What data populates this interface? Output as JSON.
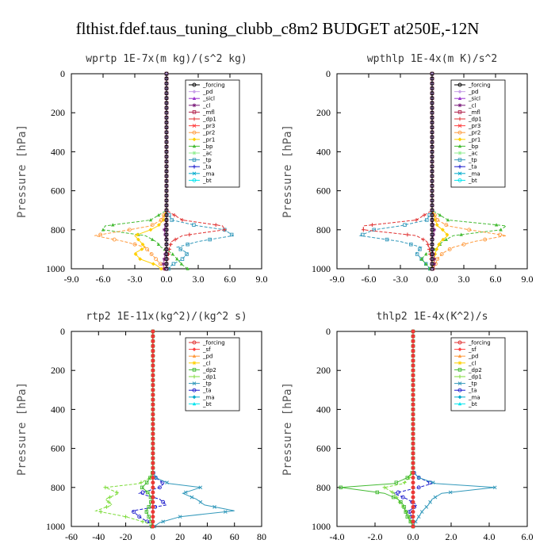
{
  "figure_title": "flthist.fdef.taus_tuning_clubb_c8m2  BUDGET at250E,-12N",
  "chart_data": [
    {
      "type": "line",
      "title": "wprtp  1E-7x(m kg)/(s^2 kg)",
      "ylabel": "Pressure [hPa]",
      "xlim": [
        -9,
        9
      ],
      "ylim": [
        1000,
        0
      ],
      "xticks": [
        "-9.0",
        "-6.0",
        "-3.0",
        "0.0",
        "3.0",
        "6.0",
        "9.0"
      ],
      "yticks": [
        "0",
        "200",
        "400",
        "600",
        "800",
        "1000"
      ],
      "legend_position": "top-right",
      "levels": [
        700,
        750,
        780,
        800,
        830,
        860,
        890,
        920,
        950,
        980,
        1000
      ],
      "series": [
        {
          "name": "_forcing",
          "color": "#000000",
          "values": [
            0,
            0,
            0,
            0,
            0,
            0,
            0,
            0,
            0,
            0,
            0
          ]
        },
        {
          "name": "_pd",
          "color": "#c8a0e8",
          "values": [
            0,
            0,
            0,
            0,
            0,
            0,
            0,
            0,
            0,
            0,
            0
          ]
        },
        {
          "name": "_sicl",
          "color": "#9932cc",
          "values": [
            0,
            0,
            0,
            0,
            0,
            0,
            0,
            0,
            0,
            0,
            0
          ]
        },
        {
          "name": "_cl",
          "color": "#7a1a7a",
          "values": [
            0,
            0,
            -0.1,
            -0.2,
            -0.1,
            0,
            0,
            -0.1,
            -0.2,
            -0.3,
            -0.2
          ]
        },
        {
          "name": "_mfl",
          "color": "#b0204a",
          "values": [
            0,
            0,
            0,
            0,
            0,
            0,
            0,
            0,
            0,
            0,
            0
          ]
        },
        {
          "name": "_dp1",
          "color": "#e03030",
          "values": [
            0,
            1.5,
            5.3,
            5.5,
            1.5,
            0.5,
            0.3,
            0.2,
            0.1,
            0,
            0
          ]
        },
        {
          "name": "_pr3",
          "color": "#ff4040",
          "values": [
            0,
            0,
            0,
            0,
            0,
            0,
            0,
            0,
            0,
            0,
            0
          ]
        },
        {
          "name": "_pr2",
          "color": "#ff9a3c",
          "values": [
            0,
            -0.5,
            -1.5,
            -3.5,
            -6.8,
            -4.0,
            -2.0,
            -1.5,
            -1.0,
            -0.5,
            -0.2
          ]
        },
        {
          "name": "_pr1",
          "color": "#ffd000",
          "values": [
            0,
            -0.3,
            -0.8,
            -1.5,
            -3.0,
            -2.5,
            -2.0,
            -3.0,
            -2.5,
            -1.0,
            -0.5
          ]
        },
        {
          "name": "_bp",
          "color": "#44bb33",
          "values": [
            0,
            -1.5,
            -5.8,
            -6.0,
            -2.0,
            -1.0,
            -0.5,
            0.5,
            1.0,
            1.5,
            2.0
          ]
        },
        {
          "name": "_ac",
          "color": "#90ee90",
          "values": [
            0,
            0,
            0,
            0,
            0,
            0,
            0,
            0,
            0,
            0,
            0
          ]
        },
        {
          "name": "_tp",
          "color": "#3399bb",
          "values": [
            0,
            0.5,
            3.0,
            5.5,
            6.3,
            3.0,
            1.0,
            2.0,
            1.5,
            0.5,
            0.2
          ]
        },
        {
          "name": "_ta",
          "color": "#1a1acc",
          "values": [
            0,
            0,
            0,
            0,
            0,
            0,
            0,
            0,
            0,
            0,
            0
          ]
        },
        {
          "name": "_ma",
          "color": "#00aacc",
          "values": [
            0,
            0,
            0,
            0,
            0,
            0,
            0,
            0,
            0,
            0,
            0
          ]
        },
        {
          "name": "_bt",
          "color": "#00e5ee",
          "values": [
            0,
            0,
            0,
            0,
            0,
            0,
            0,
            0,
            0,
            0,
            0
          ]
        }
      ]
    },
    {
      "type": "line",
      "title": "wpthlp  1E-4x(m K)/s^2",
      "ylabel": "Pressure [hPa]",
      "xlim": [
        -9,
        9
      ],
      "ylim": [
        1000,
        0
      ],
      "xticks": [
        "-9.0",
        "-6.0",
        "-3.0",
        "0.0",
        "3.0",
        "6.0",
        "9.0"
      ],
      "yticks": [
        "0",
        "200",
        "400",
        "600",
        "800",
        "1000"
      ],
      "legend_position": "top-right",
      "levels": [
        700,
        750,
        780,
        800,
        830,
        860,
        890,
        920,
        950,
        980,
        1000
      ],
      "series": [
        {
          "name": "_forcing",
          "color": "#000000",
          "values": [
            0,
            0,
            0,
            0,
            0,
            0,
            0,
            0,
            0,
            0,
            0
          ]
        },
        {
          "name": "_pd",
          "color": "#c8a0e8",
          "values": [
            0,
            0,
            0,
            0,
            0,
            0,
            0,
            0,
            0,
            0,
            0
          ]
        },
        {
          "name": "_sicl",
          "color": "#9932cc",
          "values": [
            0,
            0,
            0,
            0,
            0,
            0,
            0,
            0,
            0,
            0,
            0
          ]
        },
        {
          "name": "_cl",
          "color": "#7a1a7a",
          "values": [
            0,
            0,
            0.1,
            0.2,
            0.1,
            0,
            0,
            0.1,
            0.2,
            0.2,
            0.1
          ]
        },
        {
          "name": "_mfl",
          "color": "#b0204a",
          "values": [
            0,
            0,
            0,
            0,
            0,
            0,
            0,
            0,
            0,
            0,
            0
          ]
        },
        {
          "name": "_dp1",
          "color": "#e03030",
          "values": [
            0,
            -1.5,
            -6.5,
            -6.5,
            -1.5,
            -0.5,
            -0.3,
            -0.2,
            -0.1,
            0,
            0
          ]
        },
        {
          "name": "_pr3",
          "color": "#ff4040",
          "values": [
            0,
            0,
            0,
            0,
            0,
            0,
            0,
            0,
            0,
            0,
            0
          ]
        },
        {
          "name": "_pr2",
          "color": "#ff9a3c",
          "values": [
            0,
            0.5,
            1.5,
            3.5,
            7.0,
            4.0,
            2.0,
            1.0,
            0.5,
            0.3,
            0.1
          ]
        },
        {
          "name": "_pr1",
          "color": "#ffd000",
          "values": [
            0,
            0.3,
            0.5,
            1.0,
            1.5,
            0.8,
            0.5,
            0.3,
            0.2,
            0.1,
            0
          ]
        },
        {
          "name": "_bp",
          "color": "#44bb33",
          "values": [
            0,
            1.5,
            7.0,
            6.5,
            2.0,
            1.0,
            0.5,
            -0.5,
            -1.0,
            -0.5,
            -0.2
          ]
        },
        {
          "name": "_ac",
          "color": "#90ee90",
          "values": [
            0,
            0,
            0,
            0,
            0,
            0,
            0,
            0,
            0,
            0,
            0
          ]
        },
        {
          "name": "_tp",
          "color": "#3399bb",
          "values": [
            0,
            -0.5,
            -3.0,
            -5.5,
            -6.8,
            -3.0,
            -1.0,
            -1.5,
            -1.0,
            -0.5,
            -0.2
          ]
        },
        {
          "name": "_ta",
          "color": "#1a1acc",
          "values": [
            0,
            0,
            0,
            0,
            0,
            0,
            0,
            0,
            0,
            0,
            0
          ]
        },
        {
          "name": "_ma",
          "color": "#00aacc",
          "values": [
            0,
            0,
            0,
            0,
            0,
            0,
            0,
            0,
            0,
            0,
            0
          ]
        },
        {
          "name": "_bt",
          "color": "#00e5ee",
          "values": [
            0,
            0,
            0,
            0,
            0,
            0,
            0,
            0,
            0,
            0,
            0
          ]
        }
      ]
    },
    {
      "type": "line",
      "title": "rtp2  1E-11x(kg^2)/(kg^2 s)",
      "ylabel": "Pressure [hPa]",
      "xlim": [
        -60,
        80
      ],
      "ylim": [
        1000,
        0
      ],
      "xticks": [
        "-60",
        "-40",
        "-20",
        "0",
        "20",
        "40",
        "60",
        "80"
      ],
      "yticks": [
        "0",
        "200",
        "400",
        "600",
        "800",
        "1000"
      ],
      "legend_position": "top-right",
      "levels": [
        720,
        750,
        780,
        800,
        830,
        860,
        890,
        920,
        950,
        980,
        1000
      ],
      "series": [
        {
          "name": "_forcing",
          "color": "#e03030",
          "values": [
            0,
            0,
            0,
            0,
            0,
            0,
            0,
            0,
            0,
            0,
            0
          ]
        },
        {
          "name": "_sf",
          "color": "#ff4040",
          "values": [
            0,
            0,
            0,
            0,
            0,
            0,
            0,
            0,
            0,
            0,
            0
          ]
        },
        {
          "name": "_pd",
          "color": "#ff9a3c",
          "values": [
            0,
            0,
            0,
            0,
            0,
            0,
            0,
            0,
            0,
            0,
            0
          ]
        },
        {
          "name": "_cl",
          "color": "#ffd000",
          "values": [
            0,
            0,
            0,
            0,
            0,
            0,
            0,
            0,
            0,
            0,
            0
          ]
        },
        {
          "name": "_dp2",
          "color": "#44bb33",
          "values": [
            0,
            -2,
            -5,
            -8,
            -3,
            -1,
            -2,
            -5,
            -3,
            -1,
            -0.5
          ]
        },
        {
          "name": "_dp1",
          "color": "#7ddc3a",
          "values": [
            0,
            -2,
            -10,
            -35,
            -25,
            -35,
            -30,
            -42,
            -20,
            -5,
            -1
          ]
        },
        {
          "name": "_tp",
          "color": "#3399bb",
          "values": [
            0,
            2,
            12,
            35,
            22,
            32,
            38,
            60,
            20,
            5,
            1
          ]
        },
        {
          "name": "_ta",
          "color": "#1a1acc",
          "values": [
            0,
            2,
            8,
            5,
            -10,
            5,
            10,
            -15,
            -10,
            -3,
            -1
          ]
        },
        {
          "name": "_ma",
          "color": "#00aacc",
          "values": [
            0,
            0,
            0,
            0,
            0,
            0,
            0,
            0,
            0,
            0,
            0
          ]
        },
        {
          "name": "_bt",
          "color": "#00e5ee",
          "values": [
            0,
            0,
            0,
            0,
            0,
            0,
            0,
            0,
            0,
            0,
            0
          ]
        }
      ]
    },
    {
      "type": "line",
      "title": "thlp2  1E-4x(K^2)/s",
      "ylabel": "Pressure [hPa]",
      "xlim": [
        -4,
        6
      ],
      "ylim": [
        1000,
        0
      ],
      "xticks": [
        "-4.0",
        "-2.0",
        "0.0",
        "2.0",
        "4.0",
        "6.0"
      ],
      "yticks": [
        "0",
        "200",
        "400",
        "600",
        "800",
        "1000"
      ],
      "legend_position": "top-right",
      "levels": [
        720,
        750,
        780,
        800,
        830,
        860,
        890,
        920,
        950,
        980,
        1000
      ],
      "series": [
        {
          "name": "_forcing",
          "color": "#e03030",
          "values": [
            0,
            0,
            0,
            0,
            0,
            0,
            0,
            0,
            0,
            0,
            0
          ]
        },
        {
          "name": "_sf",
          "color": "#ff4040",
          "values": [
            0,
            0,
            0,
            0,
            0,
            0,
            0,
            0,
            0,
            0,
            0
          ]
        },
        {
          "name": "_pd",
          "color": "#ff9a3c",
          "values": [
            0,
            0,
            0,
            0,
            0,
            0,
            0,
            0,
            0,
            0,
            0
          ]
        },
        {
          "name": "_cl",
          "color": "#ffd000",
          "values": [
            0,
            0,
            0,
            0,
            0,
            0,
            0,
            0,
            0,
            0,
            0
          ]
        },
        {
          "name": "_dp2",
          "color": "#44bb33",
          "values": [
            0,
            -0.3,
            -1.0,
            -3.8,
            -1.5,
            -0.8,
            -0.5,
            -0.4,
            -0.3,
            -0.1,
            0
          ]
        },
        {
          "name": "_dp1",
          "color": "#7ddc3a",
          "values": [
            0,
            -0.2,
            -0.5,
            -1.5,
            -1.0,
            -0.8,
            -0.6,
            -0.4,
            -0.2,
            -0.1,
            0
          ]
        },
        {
          "name": "_tp",
          "color": "#3399bb",
          "values": [
            0,
            0.3,
            1.2,
            4.3,
            1.5,
            1.0,
            0.8,
            0.5,
            0.3,
            0.1,
            0
          ]
        },
        {
          "name": "_ta",
          "color": "#1a1acc",
          "values": [
            0,
            0.3,
            1.0,
            0.3,
            -1.0,
            -0.3,
            0.2,
            -0.2,
            -0.1,
            0,
            0
          ]
        },
        {
          "name": "_ma",
          "color": "#00aacc",
          "values": [
            0,
            0,
            0,
            0,
            0,
            0,
            0,
            0,
            0,
            0,
            0
          ]
        },
        {
          "name": "_bt",
          "color": "#00e5ee",
          "values": [
            0,
            0,
            0,
            0,
            0,
            0,
            0,
            0,
            0,
            0,
            0
          ]
        }
      ]
    }
  ]
}
